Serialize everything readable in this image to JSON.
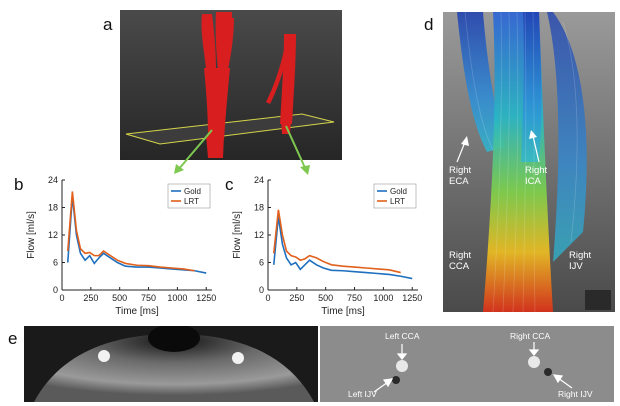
{
  "figure": {
    "panels": {
      "a": {
        "label": "a"
      },
      "b": {
        "label": "b"
      },
      "c": {
        "label": "c"
      },
      "d": {
        "label": "d"
      },
      "e": {
        "label": "e"
      }
    },
    "panel_d_annotations": {
      "right_eca_1": "Right",
      "right_eca_2": "ECA",
      "right_ica_1": "Right",
      "right_ica_2": "ICA",
      "right_cca_1": "Right",
      "right_cca_2": "CCA",
      "right_ijv_1": "Right",
      "right_ijv_2": "IJV"
    },
    "panel_e_annotations": {
      "left_cca": "Left CCA",
      "right_cca": "Right CCA",
      "left_ijv": "Left IJV",
      "right_ijv": "Right IJV"
    },
    "colors": {
      "gold": "#1f6fbf",
      "lrt": "#e0601c",
      "vessel": "#d81e1e",
      "arrow_green": "#7ec850"
    }
  },
  "chart_data": [
    {
      "type": "line",
      "panel": "b",
      "xlabel": "Time [ms]",
      "ylabel": "Flow [ml/s]",
      "xlim": [
        0,
        1300
      ],
      "ylim": [
        0,
        24
      ],
      "xticks": [
        0,
        250,
        500,
        750,
        1000,
        1250
      ],
      "yticks": [
        0,
        6,
        12,
        18,
        24
      ],
      "legend": "top-right",
      "series": [
        {
          "name": "Gold",
          "color": "#1f6fbf",
          "x": [
            50,
            90,
            125,
            160,
            200,
            240,
            280,
            320,
            360,
            420,
            480,
            550,
            650,
            750,
            850,
            950,
            1050,
            1150,
            1250
          ],
          "y": [
            6,
            20.5,
            12,
            8,
            6.5,
            7.5,
            5.8,
            7,
            8,
            7,
            6,
            5.2,
            5,
            5,
            4.8,
            4.6,
            4.4,
            4.2,
            3.7
          ]
        },
        {
          "name": "LRT",
          "color": "#e0601c",
          "x": [
            50,
            90,
            125,
            160,
            200,
            240,
            280,
            320,
            360,
            420,
            480,
            550,
            650,
            750,
            850,
            950,
            1050,
            1150
          ],
          "y": [
            8.5,
            21.5,
            13,
            9,
            8,
            8.2,
            7.5,
            7.5,
            8.5,
            7.5,
            6.5,
            5.8,
            5.4,
            5.3,
            5,
            4.8,
            4.6,
            4.2
          ]
        }
      ]
    },
    {
      "type": "line",
      "panel": "c",
      "xlabel": "Time [ms]",
      "ylabel": "Flow [ml/s]",
      "xlim": [
        0,
        1300
      ],
      "ylim": [
        0,
        24
      ],
      "xticks": [
        0,
        250,
        500,
        750,
        1000,
        1250
      ],
      "yticks": [
        0,
        6,
        12,
        18,
        24
      ],
      "legend": "top-right",
      "series": [
        {
          "name": "Gold",
          "color": "#1f6fbf",
          "x": [
            50,
            90,
            125,
            160,
            200,
            240,
            280,
            320,
            360,
            420,
            480,
            550,
            650,
            750,
            850,
            950,
            1050,
            1150,
            1250
          ],
          "y": [
            5.5,
            16,
            10,
            7,
            5.5,
            6,
            4.5,
            5.5,
            6.5,
            5.5,
            4.8,
            4.3,
            4.2,
            4,
            3.8,
            3.6,
            3.4,
            3,
            2.5
          ]
        },
        {
          "name": "LRT",
          "color": "#e0601c",
          "x": [
            50,
            90,
            125,
            160,
            200,
            240,
            280,
            320,
            360,
            420,
            480,
            550,
            650,
            750,
            850,
            950,
            1050,
            1150
          ],
          "y": [
            8,
            17.5,
            12,
            8.5,
            7.5,
            7.2,
            6.5,
            6.8,
            7.5,
            7,
            6.2,
            5.5,
            5.2,
            5,
            4.8,
            4.6,
            4.4,
            3.8
          ]
        }
      ]
    }
  ]
}
